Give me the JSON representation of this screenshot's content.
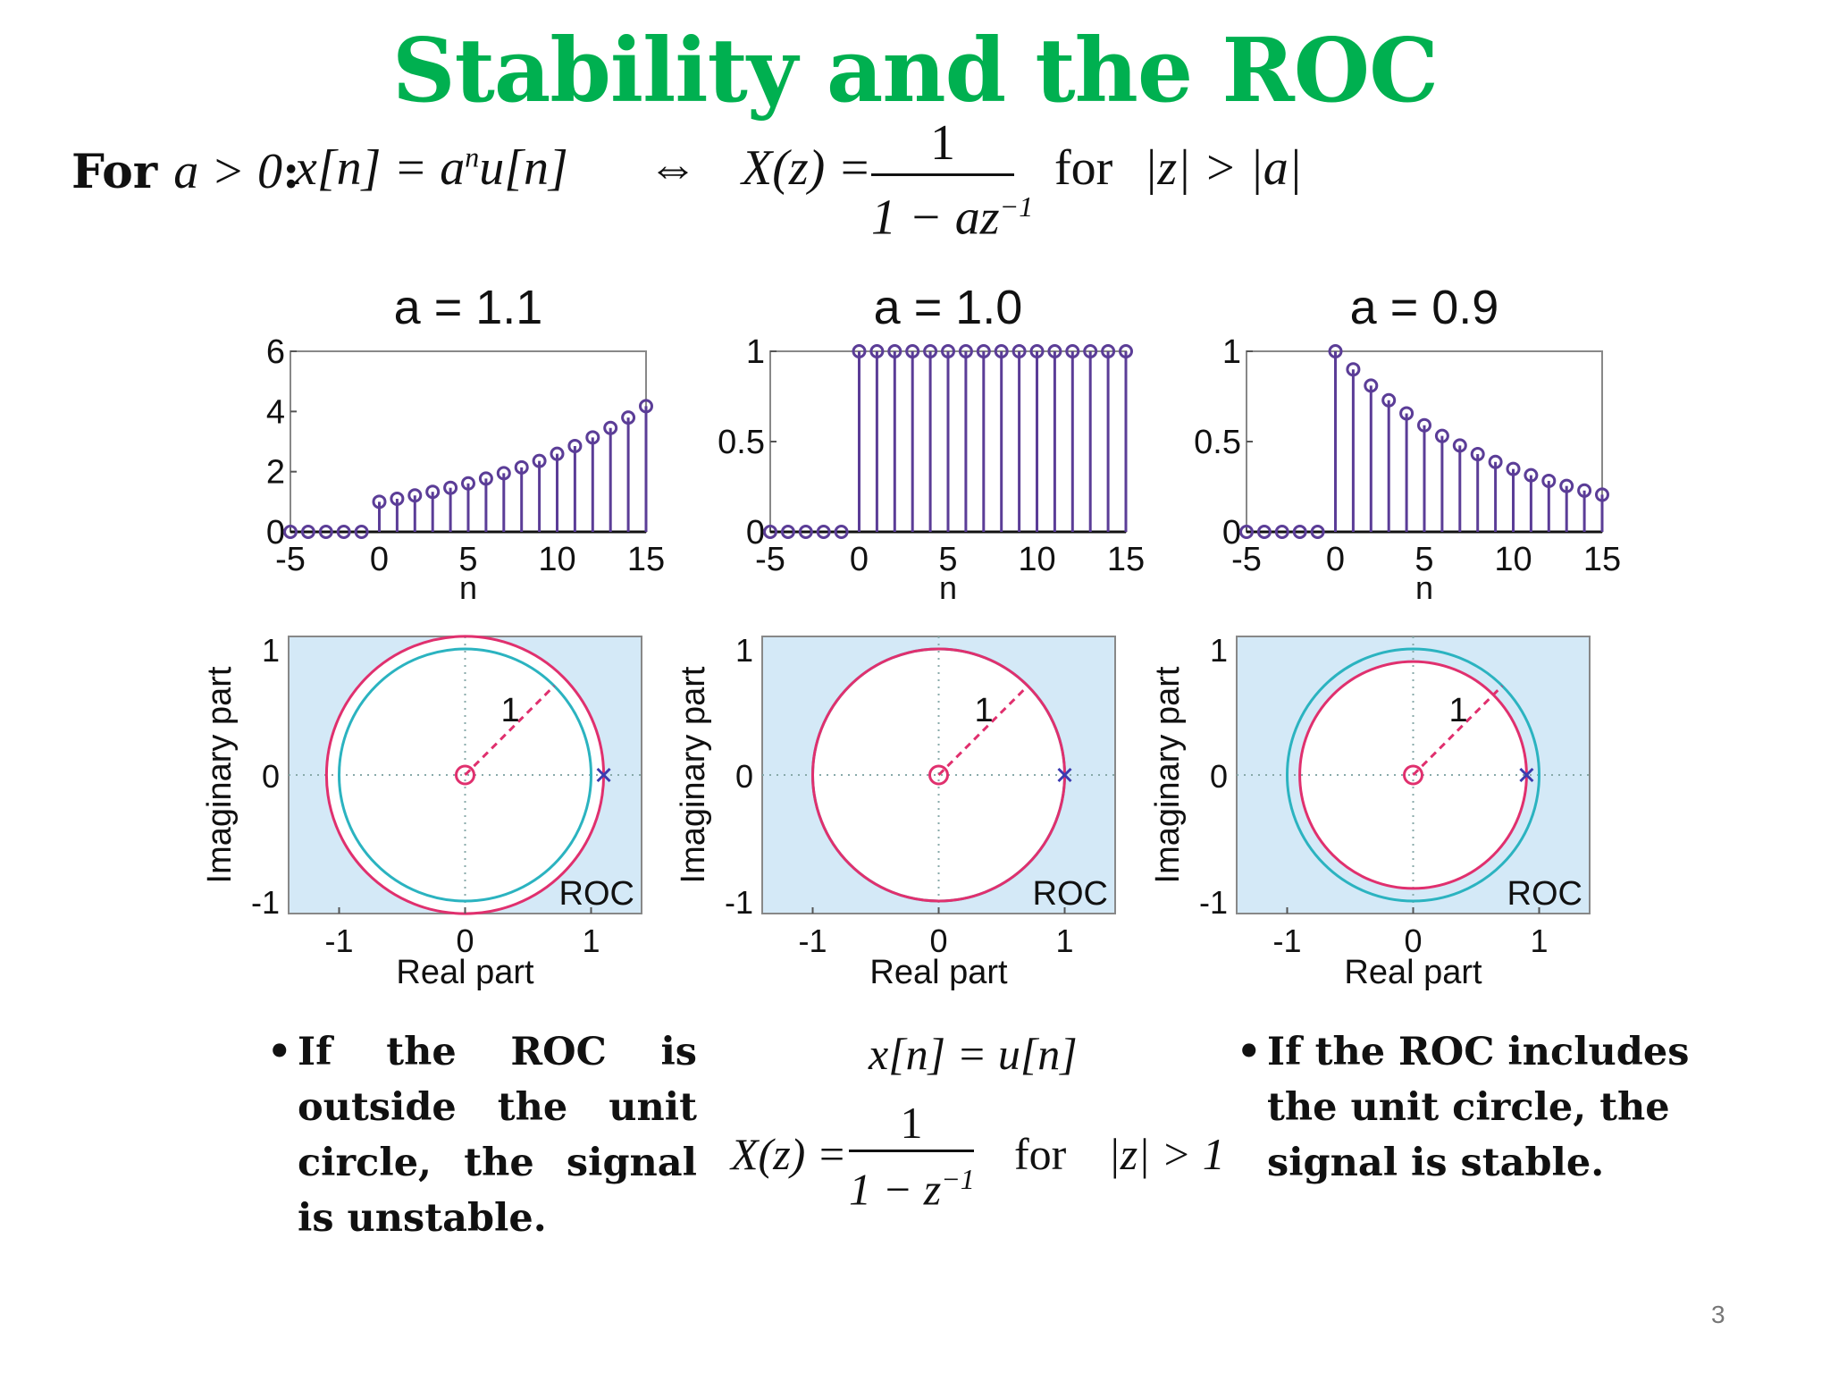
{
  "slide": {
    "title": "Stability and the ROC",
    "page_number": "3",
    "title_color": "#00b050"
  },
  "formula": {
    "lead": "For",
    "condition": "a > 0",
    "signal": "x[n] = a",
    "signal_exp": "n",
    "signal_tail": "u[n]",
    "iff": "⇔",
    "xz": "X(z) =",
    "numerator": "1",
    "denominator": "1 − az",
    "denominator_exp": "−1",
    "for": "for",
    "roc": "|z| > |a|"
  },
  "bullets": {
    "left": "If the ROC is outside the unit circle, the signal is unstable.",
    "right": "If the ROC includes the unit circle, the signal is stable."
  },
  "middle": {
    "signal": "x[n] = u[n]",
    "xz": "X(z) =",
    "numerator": "1",
    "denominator": "1 − z",
    "denominator_exp": "−1",
    "for": "for",
    "roc": "|z| > 1"
  },
  "colors": {
    "stem": "#5b3d97",
    "unit_circle": "#2bb3c0",
    "roc_circle": "#e0306e",
    "roc_fill": "#d4e9f7",
    "axis": "#222222"
  },
  "chart_data": [
    {
      "type": "stem",
      "title": "a = 1.1",
      "a": 1.1,
      "x": [
        -5,
        -4,
        -3,
        -2,
        -1,
        0,
        1,
        2,
        3,
        4,
        5,
        6,
        7,
        8,
        9,
        10,
        11,
        12,
        13,
        14,
        15
      ],
      "values": [
        0,
        0,
        0,
        0,
        0,
        1.0,
        1.1,
        1.21,
        1.331,
        1.4641,
        1.6105,
        1.7716,
        1.9487,
        2.1436,
        2.3579,
        2.5937,
        2.8531,
        3.1384,
        3.4523,
        3.7975,
        4.1772
      ],
      "xlim": [
        -5,
        15
      ],
      "ylim": [
        0,
        6
      ],
      "xticks": [
        "-5",
        "0",
        "5",
        "10",
        "15"
      ],
      "yticks": [
        "0",
        "2",
        "4",
        "6"
      ],
      "xlabel": "n"
    },
    {
      "type": "stem",
      "title": "a = 1.0",
      "a": 1.0,
      "x": [
        -5,
        -4,
        -3,
        -2,
        -1,
        0,
        1,
        2,
        3,
        4,
        5,
        6,
        7,
        8,
        9,
        10,
        11,
        12,
        13,
        14,
        15
      ],
      "values": [
        0,
        0,
        0,
        0,
        0,
        1,
        1,
        1,
        1,
        1,
        1,
        1,
        1,
        1,
        1,
        1,
        1,
        1,
        1,
        1,
        1
      ],
      "xlim": [
        -5,
        15
      ],
      "ylim": [
        0,
        1
      ],
      "xticks": [
        "-5",
        "0",
        "5",
        "10",
        "15"
      ],
      "yticks": [
        "0",
        "0.5",
        "1"
      ],
      "xlabel": "n"
    },
    {
      "type": "stem",
      "title": "a = 0.9",
      "a": 0.9,
      "x": [
        -5,
        -4,
        -3,
        -2,
        -1,
        0,
        1,
        2,
        3,
        4,
        5,
        6,
        7,
        8,
        9,
        10,
        11,
        12,
        13,
        14,
        15
      ],
      "values": [
        0,
        0,
        0,
        0,
        0,
        1.0,
        0.9,
        0.81,
        0.729,
        0.6561,
        0.5905,
        0.5314,
        0.4783,
        0.4305,
        0.3874,
        0.3487,
        0.3138,
        0.2824,
        0.2542,
        0.2288,
        0.2059
      ],
      "xlim": [
        -5,
        15
      ],
      "ylim": [
        0,
        1
      ],
      "xticks": [
        "-5",
        "0",
        "5",
        "10",
        "15"
      ],
      "yticks": [
        "0",
        "0.5",
        "1"
      ],
      "xlabel": "n"
    },
    {
      "type": "pole-zero",
      "pole": 1.1,
      "zero": 0,
      "unit_circle_radius": 1,
      "roc_radius": 1.1,
      "xlim": [
        -1.4,
        1.4
      ],
      "ylim": [
        -1.1,
        1.1
      ],
      "xticks": [
        "-1",
        "0",
        "1"
      ],
      "yticks": [
        "-1",
        "0",
        "1"
      ],
      "xlabel": "Real part",
      "ylabel": "Imaginary part",
      "radius_label": "1",
      "region_label": "ROC"
    },
    {
      "type": "pole-zero",
      "pole": 1.0,
      "zero": 0,
      "unit_circle_radius": 1,
      "roc_radius": 1.0,
      "xlim": [
        -1.4,
        1.4
      ],
      "ylim": [
        -1.1,
        1.1
      ],
      "xticks": [
        "-1",
        "0",
        "1"
      ],
      "yticks": [
        "-1",
        "0",
        "1"
      ],
      "xlabel": "Real part",
      "ylabel": "Imaginary part",
      "radius_label": "1",
      "region_label": "ROC"
    },
    {
      "type": "pole-zero",
      "pole": 0.9,
      "zero": 0,
      "unit_circle_radius": 1,
      "roc_radius": 0.9,
      "xlim": [
        -1.4,
        1.4
      ],
      "ylim": [
        -1.1,
        1.1
      ],
      "xticks": [
        "-1",
        "0",
        "1"
      ],
      "yticks": [
        "-1",
        "0",
        "1"
      ],
      "xlabel": "Real part",
      "ylabel": "Imaginary part",
      "radius_label": "1",
      "region_label": "ROC"
    }
  ]
}
